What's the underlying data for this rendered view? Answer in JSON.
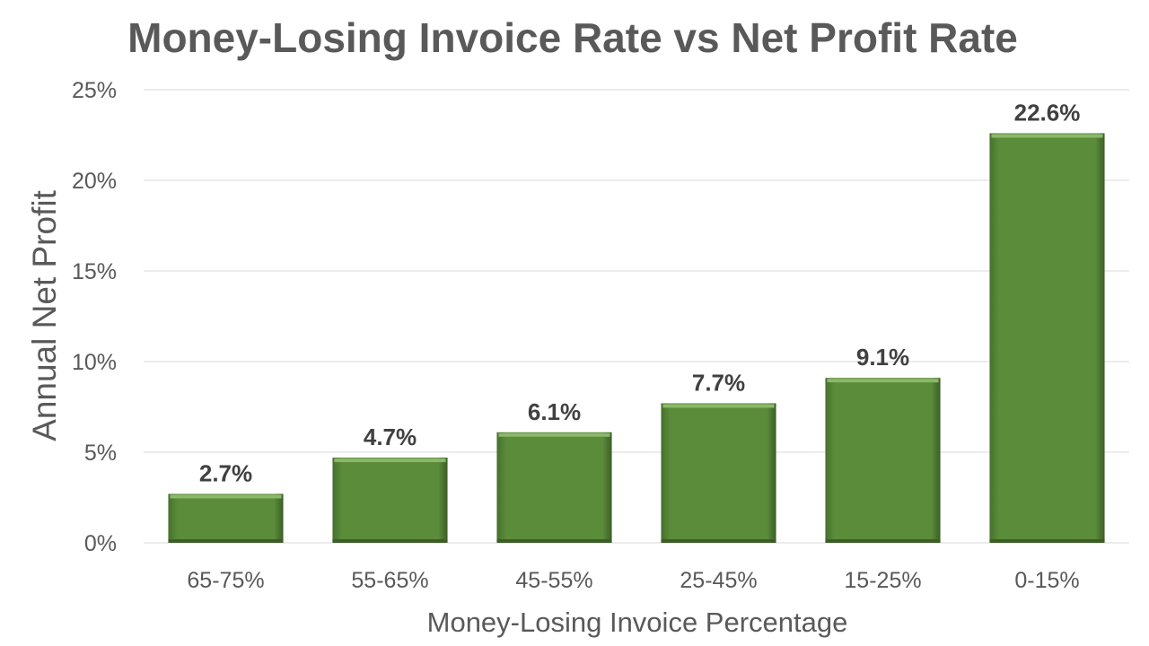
{
  "chart_data": {
    "type": "bar",
    "title": "Money-Losing Invoice Rate vs Net Profit Rate",
    "xlabel": "Money-Losing Invoice Percentage",
    "ylabel": "Annual Net Profit",
    "categories": [
      "65-75%",
      "55-65%",
      "45-55%",
      "25-45%",
      "15-25%",
      "0-15%"
    ],
    "values": [
      2.7,
      4.7,
      6.1,
      7.7,
      9.1,
      22.6
    ],
    "data_labels": [
      "2.7%",
      "4.7%",
      "6.1%",
      "7.7%",
      "9.1%",
      "22.6%"
    ],
    "ylim": [
      0,
      25
    ],
    "yticks": [
      0,
      5,
      10,
      15,
      20,
      25
    ],
    "ytick_labels": [
      "0%",
      "5%",
      "10%",
      "15%",
      "20%",
      "25%"
    ],
    "grid": true,
    "legend": "none",
    "colors": {
      "bar_fill": "#5b8c3a",
      "bar_highlight": "#8bb86a",
      "bar_shadow": "#3c5e26",
      "grid": "#d9d9d9",
      "text": "#595959"
    }
  }
}
